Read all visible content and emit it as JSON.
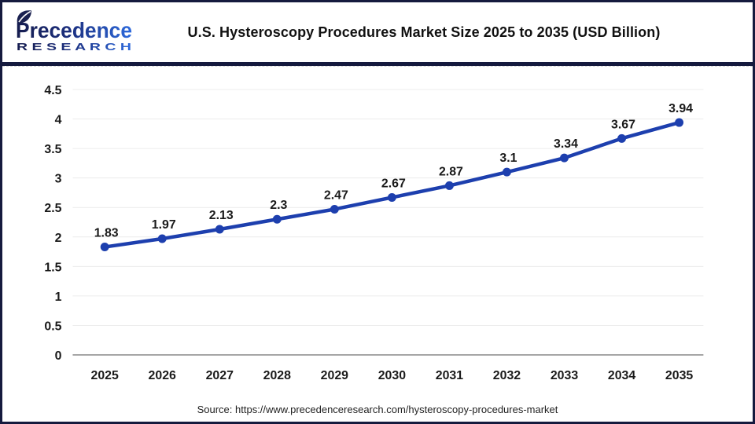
{
  "header": {
    "logo": {
      "brand": "Precedence",
      "sub": "R E S E A R C H"
    },
    "title": "U.S. Hysteroscopy Procedures Market Size 2025 to 2035 (USD Billion)"
  },
  "chart_data": {
    "type": "line",
    "title": "U.S. Hysteroscopy Procedures Market Size 2025 to 2035 (USD Billion)",
    "categories": [
      "2025",
      "2026",
      "2027",
      "2028",
      "2029",
      "2030",
      "2031",
      "2032",
      "2033",
      "2034",
      "2035"
    ],
    "series": [
      {
        "name": "U.S. Hysteroscopy Procedures Market Size (USD Billion)",
        "values": [
          1.83,
          1.97,
          2.13,
          2.3,
          2.47,
          2.67,
          2.87,
          3.1,
          3.34,
          3.67,
          3.94
        ]
      }
    ],
    "xlabel": "",
    "ylabel": "",
    "ylim": [
      0,
      4.5
    ],
    "ytick_step": 0.5,
    "yticks": [
      "0",
      "0.5",
      "1",
      "1.5",
      "2",
      "2.5",
      "3",
      "3.5",
      "4",
      "4.5"
    ],
    "grid": true,
    "legend": false,
    "data_labels": true
  },
  "footer": {
    "source": "Source: https://www.precedenceresearch.com/hysteroscopy-procedures-market"
  },
  "colors": {
    "line": "#1d3fae",
    "marker": "#1d3fae",
    "grid": "#ececec",
    "axis": "#a6a6a6",
    "text": "#1a1a1a",
    "brand_navy": "#151a3e",
    "brand_gradient_start": "#151c4e",
    "brand_gradient_end": "#2e6ce0"
  }
}
